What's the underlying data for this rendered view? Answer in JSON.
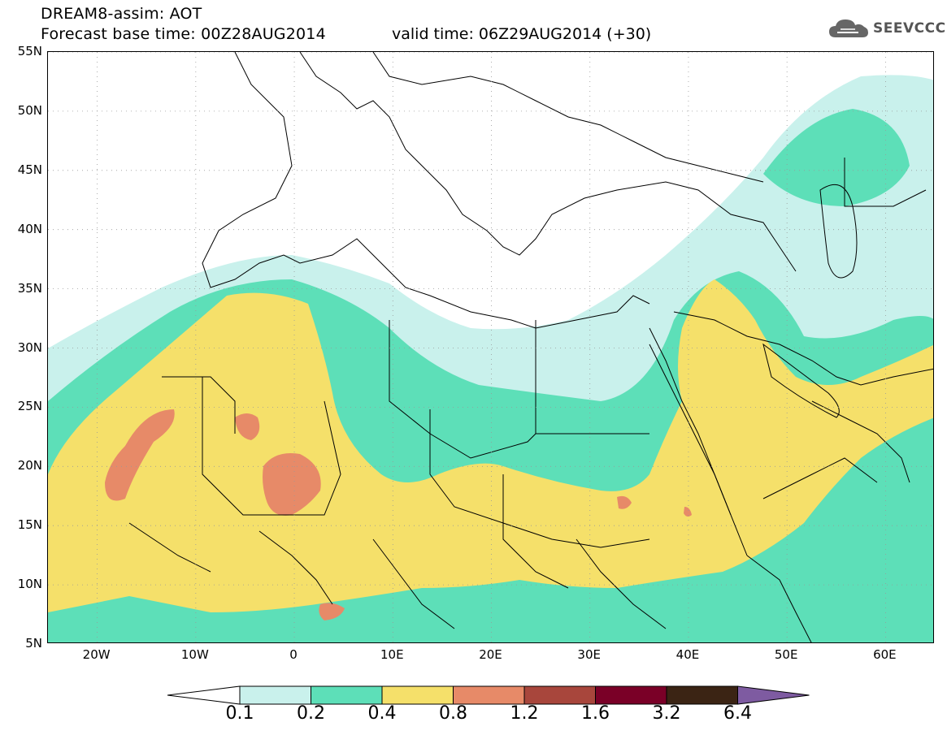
{
  "header": {
    "title_line1": "DREAM8-assim: AOT",
    "title_line2": "Forecast base time: 00Z28AUG2014",
    "valid_time": "valid time: 06Z29AUG2014 (+30)",
    "logo_text": "SEEVCCC"
  },
  "map": {
    "lat_labels": [
      "55N",
      "50N",
      "45N",
      "40N",
      "35N",
      "30N",
      "25N",
      "20N",
      "15N",
      "10N",
      "5N"
    ],
    "lon_labels": [
      "20W",
      "10W",
      "0",
      "10E",
      "20E",
      "30E",
      "40E",
      "50E",
      "60E"
    ],
    "lon_range": [
      -25,
      65
    ],
    "lat_range": [
      5,
      55
    ]
  },
  "legend": {
    "levels": [
      "0.1",
      "0.2",
      "0.4",
      "0.8",
      "1.2",
      "1.6",
      "3.2",
      "6.4"
    ],
    "colors": [
      "#c9f1ec",
      "#5ddfb8",
      "#f5e06a",
      "#e78a68",
      "#a8463c",
      "#7a0027",
      "#3b2414",
      "#7e5ba1"
    ]
  },
  "colors": {
    "very_low": "#c9f1ec",
    "low": "#5ddfb8",
    "medium": "#f5e06a",
    "high": "#e78a68",
    "very_high": "#a8463c"
  }
}
